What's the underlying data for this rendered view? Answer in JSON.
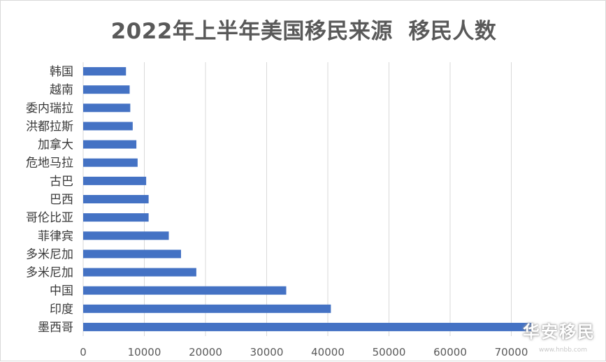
{
  "chart_data": {
    "type": "bar",
    "orientation": "horizontal",
    "title": "2022年上半年美国移民来源  移民人数",
    "categories": [
      "韩国",
      "越南",
      "委内瑞拉",
      "洪都拉斯",
      "加拿大",
      "危地马拉",
      "古巴",
      "巴西",
      "哥伦比亚",
      "菲律宾",
      "多米尼加",
      "多米尼加",
      "中国",
      "印度",
      "墨西哥"
    ],
    "values": [
      7000,
      7600,
      7700,
      8100,
      8700,
      8900,
      10300,
      10700,
      10700,
      14000,
      16000,
      18500,
      33200,
      40500,
      73300
    ],
    "xlim": [
      0,
      80000
    ],
    "xticks": [
      0,
      10000,
      20000,
      30000,
      40000,
      50000,
      60000,
      70000
    ],
    "grid": "vertical",
    "bar_color": "#4472c4",
    "legend": "none"
  },
  "watermark": {
    "text": "华安移民",
    "sub": "www.hnbb.com"
  }
}
